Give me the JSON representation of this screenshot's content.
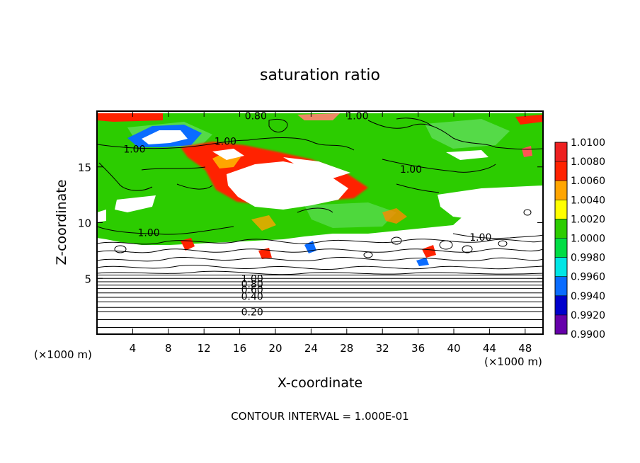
{
  "chart_data": {
    "type": "heatmap",
    "title": "saturation ratio",
    "xlabel": "X-coordinate",
    "ylabel": "Z-coordinate",
    "x_unit": "(×1000 m)",
    "x_unit_right": "(×1000 m)",
    "xlim": [
      0,
      50
    ],
    "ylim": [
      0,
      20
    ],
    "x_ticks": [
      4,
      8,
      12,
      16,
      20,
      24,
      28,
      32,
      36,
      40,
      44,
      48
    ],
    "y_ticks": [
      5,
      10,
      15
    ],
    "contour_interval": "CONTOUR INTERVAL = 1.000E-01",
    "colorbar": {
      "levels": [
        "0.9900",
        "0.9920",
        "0.9940",
        "0.9960",
        "0.9980",
        "1.0000",
        "1.0020",
        "1.0040",
        "1.0060",
        "1.0080",
        "1.0100"
      ],
      "colors": [
        "#6600aa",
        "#0000cc",
        "#0a6cff",
        "#00e6e6",
        "#00dd44",
        "#2ccc00",
        "#ffff00",
        "#ffa500",
        "#ff2200",
        "#ee2020",
        "#f08888"
      ]
    },
    "contour_labels": [
      {
        "text": "0.80",
        "x": 17.8,
        "y": 19.6
      },
      {
        "text": "1.00",
        "x": 29.2,
        "y": 19.6
      },
      {
        "text": "1.00",
        "x": 14.4,
        "y": 17.3
      },
      {
        "text": "1.00",
        "x": 4.2,
        "y": 16.6
      },
      {
        "text": "1.00",
        "x": 35.2,
        "y": 14.8
      },
      {
        "text": "1.00",
        "x": 5.8,
        "y": 9.1
      },
      {
        "text": "1.00",
        "x": 43.0,
        "y": 8.7
      },
      {
        "text": "1.00",
        "x": 17.4,
        "y": 5.0
      },
      {
        "text": "0.80",
        "x": 17.4,
        "y": 4.5
      },
      {
        "text": "0.60",
        "x": 17.4,
        "y": 4.0
      },
      {
        "text": "0.40",
        "x": 17.4,
        "y": 3.4
      },
      {
        "text": "0.20",
        "x": 17.4,
        "y": 2.0
      }
    ],
    "stratified_contours_z": [
      0.6,
      1.3,
      2.0,
      2.4,
      2.9,
      3.3,
      3.7,
      4.1,
      4.4,
      4.7,
      5.0,
      5.3
    ]
  }
}
